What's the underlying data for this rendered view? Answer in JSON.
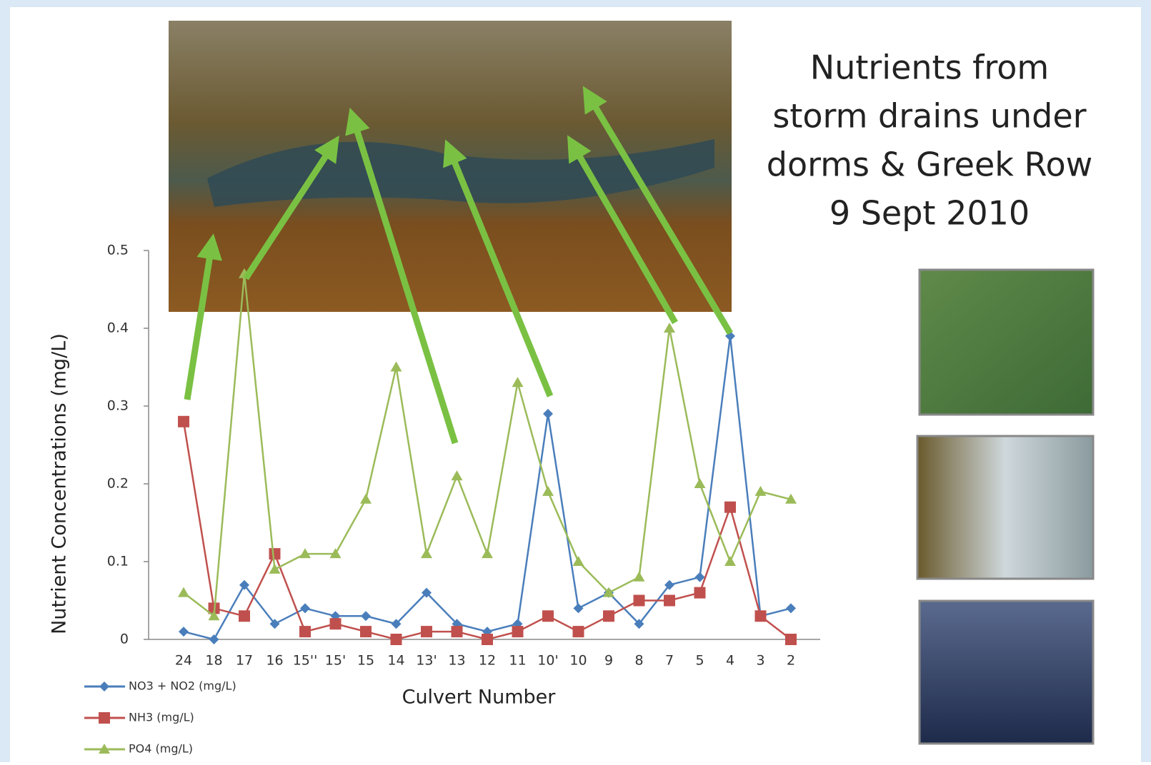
{
  "chart_data": {
    "type": "line",
    "title_lines": [
      "Nutrients from",
      "storm drains under",
      "dorms & Greek Row",
      "9 Sept 2010"
    ],
    "x_label": "Culvert Number",
    "y_label": "Nutrient Concentrations (mg/L)",
    "categories": [
      "24",
      "18",
      "17",
      "16",
      "15''",
      "15'",
      "15",
      "14",
      "13'",
      "13",
      "12",
      "11",
      "10'",
      "10",
      "9",
      "8",
      "7",
      "5",
      "4",
      "3",
      "2"
    ],
    "series": [
      {
        "name": "NO3 + NO2 (mg/L)",
        "color": "#4a7ebb",
        "marker": "diamond",
        "values": [
          0.01,
          0,
          0.07,
          0.02,
          0.04,
          0.03,
          0.03,
          0.02,
          0.06,
          0.02,
          0.01,
          0.02,
          0.29,
          0.04,
          0.06,
          0.02,
          0.07,
          0.08,
          0.39,
          0.03,
          0.04
        ]
      },
      {
        "name": "NH3 (mg/L)",
        "color": "#c0504d",
        "marker": "square",
        "values": [
          0.28,
          0.04,
          0.03,
          0.11,
          0.01,
          0.02,
          0.01,
          0,
          0.01,
          0.01,
          0,
          0.01,
          0.03,
          0.01,
          0.03,
          0.05,
          0.05,
          0.06,
          0.17,
          0.03,
          0
        ]
      },
      {
        "name": "PO4 (mg/L)",
        "color": "#9bbb59",
        "marker": "triangle",
        "values": [
          0.06,
          0.03,
          0.47,
          0.09,
          0.11,
          0.11,
          0.18,
          0.35,
          0.11,
          0.21,
          0.11,
          0.33,
          0.19,
          0.1,
          0.06,
          0.08,
          0.4,
          0.2,
          0.1,
          0.19,
          0.18
        ]
      }
    ],
    "ylim": [
      0,
      0.5
    ],
    "yticks": [
      0,
      0.1,
      0.2,
      0.3,
      0.4,
      0.5
    ]
  }
}
